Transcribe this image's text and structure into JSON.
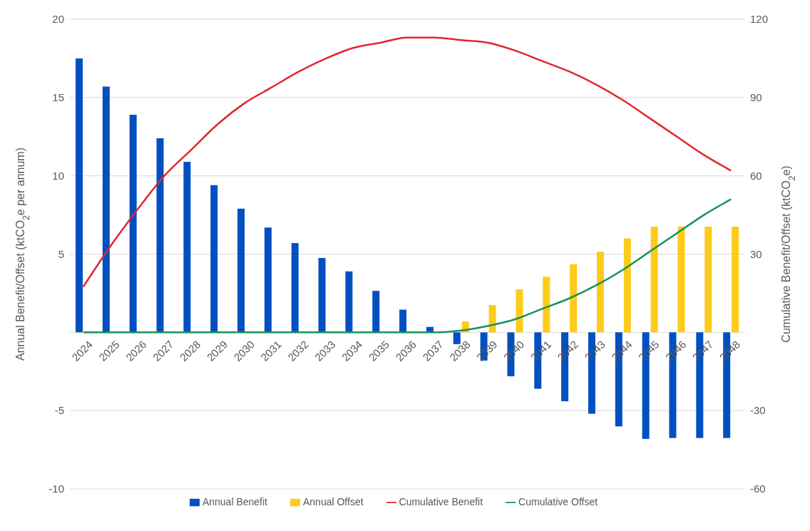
{
  "chart_data": {
    "type": "bar",
    "categories": [
      "2024",
      "2025",
      "2026",
      "2027",
      "2028",
      "2029",
      "2030",
      "2031",
      "2032",
      "2033",
      "2034",
      "2035",
      "2036",
      "2037",
      "2038",
      "2039",
      "2040",
      "2041",
      "2042",
      "2043",
      "2044",
      "2045",
      "2046",
      "2047",
      "2048"
    ],
    "series": [
      {
        "name": "Annual Benefit",
        "color": "#0050c0",
        "values": [
          17.5,
          15.7,
          13.9,
          12.4,
          10.9,
          9.4,
          7.9,
          6.7,
          5.7,
          4.75,
          3.9,
          2.65,
          1.45,
          0.35,
          -0.75,
          -1.8,
          -2.8,
          -3.6,
          -4.4,
          -5.2,
          -6.0,
          -6.8,
          -6.75,
          -6.75,
          -6.75
        ]
      },
      {
        "name": "Annual Offset",
        "color": "#fdcb1a",
        "values": [
          0,
          0,
          0,
          0,
          0,
          0,
          0,
          0,
          0,
          0,
          0,
          0,
          0,
          0,
          0.7,
          1.75,
          2.75,
          3.55,
          4.35,
          5.15,
          6.0,
          6.75,
          6.75,
          6.75,
          6.75
        ]
      },
      {
        "name": "Cumulative Benefit",
        "type": "line",
        "axis": "y2",
        "color": "#e2252f",
        "values": [
          17.5,
          33,
          47,
          60,
          70,
          80,
          88,
          94,
          100,
          105,
          109,
          111,
          113,
          113,
          112,
          111,
          108,
          104,
          100,
          95,
          89,
          82,
          75,
          68,
          62
        ]
      },
      {
        "name": "Cumulative Offset",
        "type": "line",
        "axis": "y2",
        "color": "#16925a",
        "values": [
          0,
          0,
          0,
          0,
          0,
          0,
          0,
          0,
          0,
          0,
          0,
          0,
          0,
          0,
          0.7,
          2.5,
          5,
          9,
          13,
          18,
          24,
          31,
          38,
          45,
          51
        ]
      }
    ],
    "ylabel": "Annual Benefit/Offset (ktCO$_{2}$e per annum)",
    "y2label": "Cumulative Benefit/Offset (ktCO$_{2}$e)",
    "ylim": [
      -10,
      20
    ],
    "yticks": [
      -10,
      -5,
      {
        "value": 0,
        "label": null
      },
      5,
      10,
      15,
      20
    ],
    "y2lim": [
      -60,
      120
    ],
    "y2ticks": [
      -60,
      -30,
      30,
      60,
      90,
      120
    ],
    "grid": "y",
    "legend": "bottom",
    "marker": "none",
    "line_style": "solid"
  }
}
